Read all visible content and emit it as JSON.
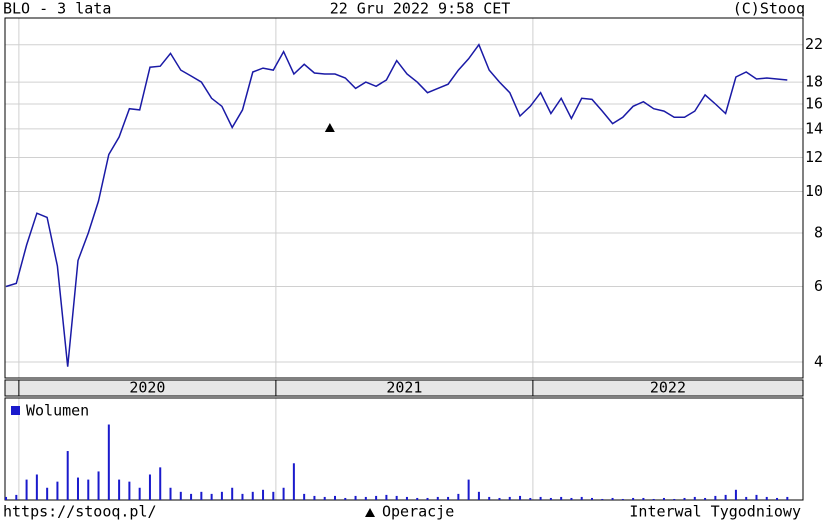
{
  "chart_data": {
    "type": "line",
    "title": "BLO - 3 lata",
    "date": "22 Gru 2022 9:58 CET",
    "source": "(C)Stooq",
    "url": "https://stooq.pl/",
    "interval": "Interwal Tygodniowy",
    "log_scale": true,
    "grid": true,
    "xlim": [
      2019.946,
      2023.051
    ],
    "xticks": [
      {
        "value": 2020,
        "label": "2020"
      },
      {
        "value": 2021,
        "label": "2021"
      },
      {
        "value": 2022,
        "label": "2022"
      }
    ],
    "ylim": [
      3.67,
      25.4
    ],
    "yticks": [
      4,
      6,
      8,
      10,
      12,
      14,
      16,
      18,
      22
    ],
    "x": [
      2019.95,
      2019.99,
      2020.03,
      2020.07,
      2020.11,
      2020.15,
      2020.19,
      2020.23,
      2020.27,
      2020.31,
      2020.35,
      2020.39,
      2020.43,
      2020.47,
      2020.51,
      2020.55,
      2020.59,
      2020.63,
      2020.67,
      2020.71,
      2020.75,
      2020.79,
      2020.83,
      2020.87,
      2020.91,
      2020.95,
      2020.99,
      2021.03,
      2021.07,
      2021.11,
      2021.15,
      2021.19,
      2021.23,
      2021.27,
      2021.31,
      2021.35,
      2021.39,
      2021.43,
      2021.47,
      2021.51,
      2021.55,
      2021.59,
      2021.63,
      2021.67,
      2021.71,
      2021.75,
      2021.79,
      2021.83,
      2021.87,
      2021.91,
      2021.95,
      2021.99,
      2022.03,
      2022.07,
      2022.11,
      2022.15,
      2022.19,
      2022.23,
      2022.27,
      2022.31,
      2022.35,
      2022.39,
      2022.43,
      2022.47,
      2022.51,
      2022.55,
      2022.59,
      2022.63,
      2022.67,
      2022.71,
      2022.75,
      2022.79,
      2022.83,
      2022.87,
      2022.91,
      2022.95,
      2022.99
    ],
    "price": {
      "color": "#1a1aa6",
      "values": [
        6.0,
        6.1,
        7.5,
        8.9,
        8.7,
        6.7,
        3.9,
        6.9,
        8.0,
        9.5,
        12.2,
        13.4,
        15.6,
        15.5,
        19.5,
        19.6,
        21,
        19.2,
        18.6,
        18,
        16.5,
        15.8,
        14.1,
        15.5,
        19,
        19.4,
        19.2,
        21.2,
        18.8,
        19.8,
        18.9,
        18.8,
        18.8,
        18.4,
        17.4,
        18,
        17.6,
        18.2,
        20.2,
        18.8,
        18,
        17,
        17.4,
        17.8,
        19.2,
        20.4,
        22,
        19.2,
        18,
        17,
        15,
        15.8,
        17,
        15.2,
        16.5,
        14.8,
        16.5,
        16.4,
        15.4,
        14.4,
        14.9,
        15.8,
        16.2,
        15.6,
        15.4,
        14.9,
        14.9,
        15.4,
        16.8,
        16,
        15.2,
        18.5,
        19,
        18.3,
        18.4,
        18.3,
        18.2
      ]
    },
    "operations": {
      "name": "Operacje",
      "x": [
        2021.21
      ],
      "y": [
        14.1
      ]
    },
    "volume": {
      "name": "Wolumen",
      "color": "#1a1acc",
      "ylim": [
        0,
        100
      ],
      "values": [
        3,
        5,
        20,
        25,
        12,
        18,
        48,
        22,
        20,
        28,
        74,
        20,
        18,
        12,
        25,
        32,
        12,
        8,
        6,
        8,
        6,
        8,
        12,
        6,
        8,
        10,
        8,
        12,
        36,
        6,
        4,
        3,
        4,
        2,
        4,
        3,
        4,
        5,
        4,
        3,
        2,
        2,
        3,
        3,
        6,
        20,
        8,
        3,
        2,
        3,
        4,
        2,
        3,
        2,
        3,
        2,
        3,
        2,
        1,
        2,
        1,
        2,
        2,
        1,
        2,
        1,
        2,
        3,
        2,
        4,
        5,
        10,
        3,
        5,
        3,
        2,
        3
      ]
    }
  }
}
